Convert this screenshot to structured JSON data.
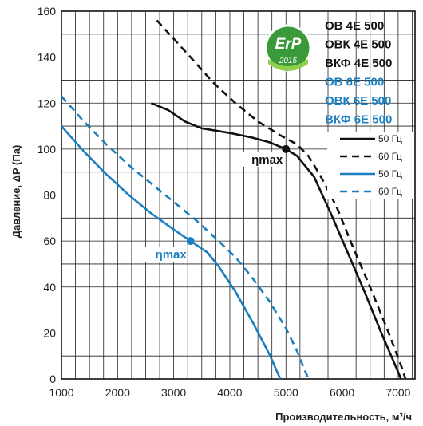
{
  "chart_data": {
    "type": "line",
    "xlabel": "Производительность, м³/ч",
    "ylabel": "Давление, ΔP (Па)",
    "xlim": [
      1000,
      7300
    ],
    "ylim": [
      0,
      160
    ],
    "x_ticks": [
      "1000",
      "2000",
      "3000",
      "4000",
      "5000",
      "6000",
      "7000"
    ],
    "y_ticks": [
      "0",
      "20",
      "40",
      "60",
      "80",
      "100",
      "120",
      "140",
      "160"
    ],
    "grid": true,
    "badge": {
      "line1": "ErP",
      "line2": "2015"
    },
    "models": [
      {
        "text": "ОВ 4Е 500",
        "color": "#111111"
      },
      {
        "text": "ОВК 4Е 500",
        "color": "#111111"
      },
      {
        "text": "ВКФ 4Е 500",
        "color": "#111111"
      },
      {
        "text": "ОВ 6Е 500",
        "color": "#1a7fc1"
      },
      {
        "text": "ОВК 6Е 500",
        "color": "#1a7fc1"
      },
      {
        "text": "ВКФ 6Е 500",
        "color": "#1a7fc1"
      }
    ],
    "series": [
      {
        "name": "50 Гц",
        "color": "#111111",
        "dash": false,
        "points": [
          [
            2600,
            120
          ],
          [
            2900,
            117
          ],
          [
            3200,
            112
          ],
          [
            3500,
            109
          ],
          [
            4000,
            107
          ],
          [
            4400,
            105
          ],
          [
            4700,
            103
          ],
          [
            5000,
            100
          ],
          [
            5200,
            97
          ],
          [
            5500,
            88
          ],
          [
            5800,
            72
          ],
          [
            6100,
            55
          ],
          [
            6400,
            38
          ],
          [
            6700,
            20
          ],
          [
            7000,
            3
          ],
          [
            7050,
            0
          ]
        ]
      },
      {
        "name": "60 Гц",
        "color": "#111111",
        "dash": true,
        "points": [
          [
            2700,
            156
          ],
          [
            3000,
            148
          ],
          [
            3300,
            140
          ],
          [
            3700,
            129
          ],
          [
            4100,
            120
          ],
          [
            4500,
            112
          ],
          [
            4900,
            106
          ],
          [
            5200,
            102
          ],
          [
            5400,
            97
          ],
          [
            5600,
            89
          ],
          [
            5900,
            75
          ],
          [
            6200,
            57
          ],
          [
            6500,
            40
          ],
          [
            6800,
            22
          ],
          [
            7050,
            6
          ],
          [
            7130,
            0
          ]
        ]
      },
      {
        "name": "50 Гц",
        "color": "#1a7fc1",
        "dash": false,
        "points": [
          [
            1000,
            110
          ],
          [
            1400,
            99
          ],
          [
            1800,
            89
          ],
          [
            2200,
            80
          ],
          [
            2600,
            72
          ],
          [
            3000,
            65
          ],
          [
            3300,
            60
          ],
          [
            3600,
            55
          ],
          [
            3800,
            49
          ],
          [
            4100,
            38
          ],
          [
            4400,
            25
          ],
          [
            4700,
            11
          ],
          [
            4900,
            0
          ]
        ]
      },
      {
        "name": "60 Гц",
        "color": "#1a7fc1",
        "dash": true,
        "points": [
          [
            1000,
            123
          ],
          [
            1400,
            112
          ],
          [
            1800,
            102
          ],
          [
            2200,
            93
          ],
          [
            2600,
            85
          ],
          [
            3000,
            77
          ],
          [
            3400,
            69
          ],
          [
            3800,
            60
          ],
          [
            4100,
            53
          ],
          [
            4400,
            44
          ],
          [
            4700,
            34
          ],
          [
            5000,
            22
          ],
          [
            5200,
            12
          ],
          [
            5400,
            0
          ]
        ]
      }
    ],
    "annotations": [
      {
        "text": "ηmax",
        "x": 5000,
        "y": 100,
        "color": "#111111"
      },
      {
        "text": "ηmax",
        "x": 3300,
        "y": 60,
        "color": "#1a7fc1"
      }
    ]
  }
}
